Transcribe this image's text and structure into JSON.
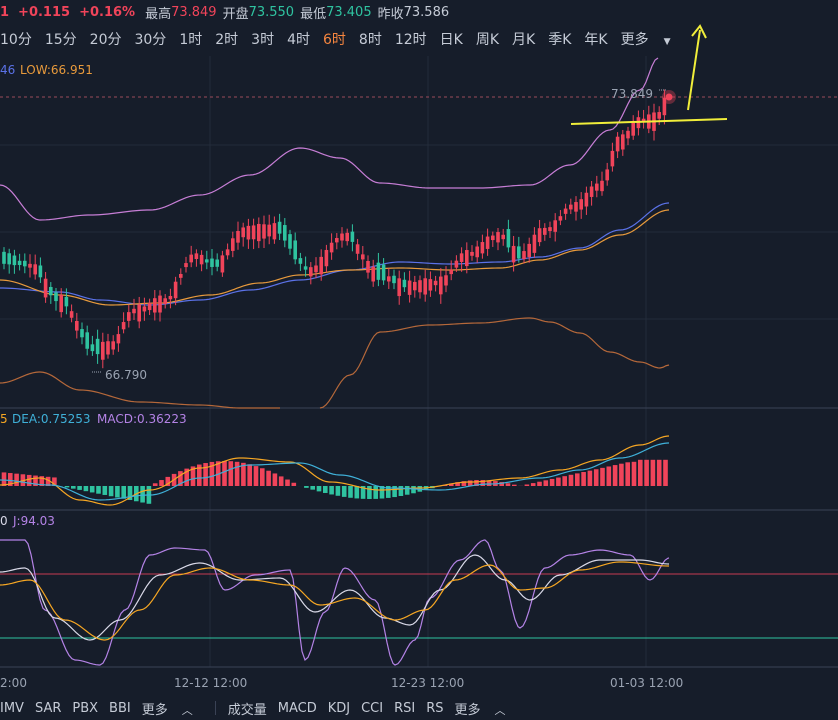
{
  "header": {
    "price_partial": "1",
    "change": "+0.115",
    "change_pct": "+0.16%",
    "high_label": "最高",
    "high_value": "73.849",
    "open_label": "开盘",
    "open_value": "73.550",
    "low_label": "最低",
    "low_value": "73.405",
    "prev_close_label": "昨收",
    "prev_close_value": "73.586"
  },
  "periods": [
    {
      "label": "10分",
      "active": false
    },
    {
      "label": "15分",
      "active": false
    },
    {
      "label": "20分",
      "active": false
    },
    {
      "label": "30分",
      "active": false
    },
    {
      "label": "1时",
      "active": false
    },
    {
      "label": "2时",
      "active": false
    },
    {
      "label": "3时",
      "active": false
    },
    {
      "label": "4时",
      "active": false
    },
    {
      "label": "6时",
      "active": true
    },
    {
      "label": "8时",
      "active": false
    },
    {
      "label": "12时",
      "active": false
    },
    {
      "label": "日K",
      "active": false
    },
    {
      "label": "周K",
      "active": false
    },
    {
      "label": "月K",
      "active": false
    },
    {
      "label": "季K",
      "active": false
    },
    {
      "label": "年K",
      "active": false
    },
    {
      "label": "更多",
      "active": false
    }
  ],
  "main_panel": {
    "legend_partial": "46",
    "low_label": "LOW:66.951",
    "high_marker": "73.849",
    "low_marker": "66.790"
  },
  "macd_panel": {
    "legend_partial": "5",
    "dea_label": "DEA:0.75253",
    "macd_label": "MACD:0.36223"
  },
  "kdj_panel": {
    "legend_partial": "0",
    "j_label": "J:94.03"
  },
  "x_axis": {
    "labels": [
      "2:00",
      "12-12 12:00",
      "12-23 12:00",
      "01-03 12:00"
    ]
  },
  "indicators_left": [
    "IMV",
    "SAR",
    "PBX",
    "BBI",
    "更多"
  ],
  "indicators_right": [
    "成交量",
    "MACD",
    "KDJ",
    "CCI",
    "RSI",
    "RS",
    "更多"
  ],
  "colors": {
    "background": "#161d2a",
    "up": "#f0445a",
    "down": "#2fc3a0",
    "accent": "#f5853f",
    "annotation": "#f1ee3a",
    "ma_blue": "#5b72e8",
    "ma_orange": "#e89a3c",
    "boll_pink": "#c77ed6",
    "boll_brown": "#b5683a",
    "kdj_k": "#d9d9e8",
    "kdj_d": "#f5a623",
    "kdj_j": "#b483e6",
    "macd_dif": "#f5a623",
    "macd_dea": "#3fb0d8"
  }
}
